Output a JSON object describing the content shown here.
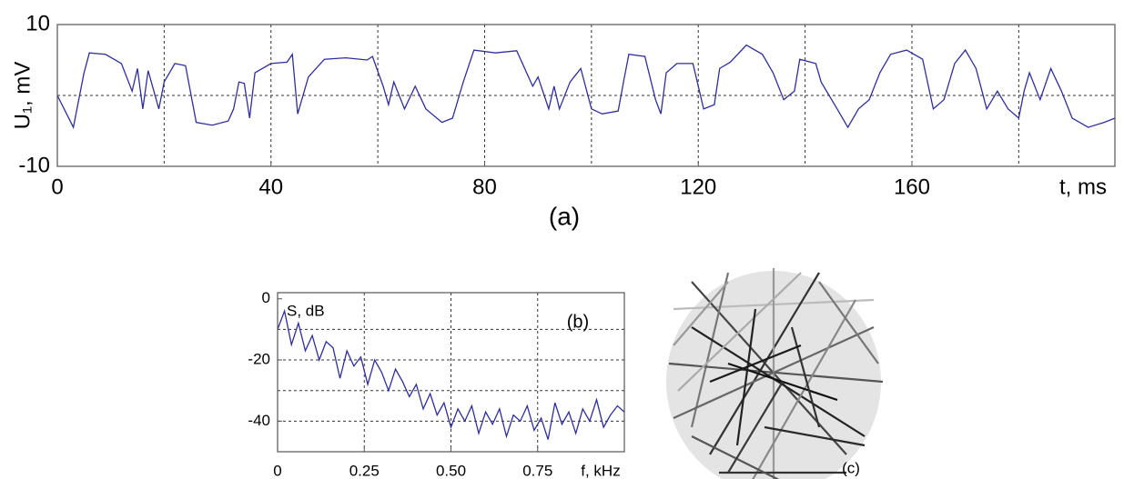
{
  "chart_data": [
    {
      "type": "line",
      "caption": "(a)",
      "xlabel": "t, ms",
      "ylabel": "U₁, mV",
      "color": "#2e2e9c",
      "xlim": [
        0,
        198
      ],
      "ylim": [
        -10,
        10
      ],
      "xticks": [
        0,
        40,
        80,
        120,
        160
      ],
      "yticks": [
        -10,
        10
      ],
      "xgrid": [
        20,
        40,
        60,
        80,
        100,
        120,
        140,
        160,
        180
      ],
      "ygrid": [
        0
      ],
      "x": [
        0,
        3,
        5,
        6,
        9,
        12,
        14,
        15,
        16,
        17,
        19,
        20,
        22,
        24,
        26,
        29,
        32,
        33,
        34,
        35,
        36,
        37,
        40,
        43,
        44,
        45,
        47,
        50,
        54,
        58,
        59,
        61,
        62,
        63,
        65,
        67,
        69,
        72,
        74,
        76,
        78,
        82,
        86,
        89,
        90,
        92,
        93,
        94,
        96,
        98,
        100,
        102,
        105,
        106,
        107,
        110,
        112,
        113,
        114,
        116,
        119,
        121,
        123,
        124,
        126,
        129,
        132,
        134,
        136,
        138,
        139,
        142,
        143,
        146,
        148,
        150,
        152,
        154,
        156,
        159,
        162,
        164,
        166,
        168,
        170,
        172,
        174,
        176,
        178,
        180,
        181,
        182,
        184,
        186,
        188,
        190,
        193,
        196,
        198
      ],
      "values": [
        0,
        -4.5,
        3.2,
        6.0,
        5.8,
        4.5,
        0.6,
        3.8,
        -1.9,
        3.5,
        -1.9,
        1.9,
        4.5,
        4.2,
        -3.8,
        -4.2,
        -3.6,
        -1.9,
        1.9,
        1.7,
        -3.2,
        3.2,
        4.5,
        4.7,
        5.8,
        -2.6,
        2.6,
        5.1,
        5.3,
        5.0,
        5.5,
        1.3,
        -1.3,
        1.9,
        -1.9,
        1.3,
        -1.9,
        -3.8,
        -3.2,
        1.9,
        6.4,
        6.0,
        6.3,
        1.3,
        2.6,
        -1.9,
        1.3,
        -1.9,
        1.9,
        3.8,
        -1.9,
        -2.6,
        -2.2,
        1.9,
        5.8,
        5.5,
        -0.6,
        -2.6,
        3.2,
        4.5,
        4.5,
        -1.9,
        -1.3,
        3.8,
        4.7,
        7.1,
        5.8,
        3.2,
        -0.6,
        0.6,
        5.1,
        4.5,
        1.9,
        -1.9,
        -4.5,
        -1.9,
        -0.6,
        3.2,
        5.8,
        6.4,
        5.1,
        -1.9,
        -0.6,
        4.5,
        6.4,
        3.8,
        -1.9,
        0.6,
        -1.9,
        -3.2,
        0.6,
        3.2,
        -0.6,
        3.8,
        0.6,
        -3.2,
        -4.5,
        -3.8,
        -3.2
      ]
    },
    {
      "type": "line",
      "caption": "(b)",
      "xlabel": "f, kHz",
      "ylabel": "S, dB",
      "color": "#2e2e9c",
      "xlim": [
        0,
        1
      ],
      "ylim": [
        -50,
        2
      ],
      "xticks": [
        0,
        0.25,
        {
          "value": 0.5,
          "label": "0.50"
        },
        0.75
      ],
      "yticks": [
        -40,
        -20,
        0
      ],
      "xgrid": [
        0.25,
        0.5,
        0.75
      ],
      "ygrid": [
        -40,
        -30,
        -20,
        -10
      ],
      "x": [
        0,
        0.02,
        0.04,
        0.06,
        0.08,
        0.1,
        0.12,
        0.14,
        0.16,
        0.18,
        0.2,
        0.22,
        0.24,
        0.26,
        0.28,
        0.3,
        0.32,
        0.34,
        0.36,
        0.38,
        0.4,
        0.42,
        0.44,
        0.46,
        0.48,
        0.5,
        0.52,
        0.54,
        0.56,
        0.58,
        0.6,
        0.62,
        0.64,
        0.66,
        0.68,
        0.7,
        0.72,
        0.74,
        0.76,
        0.78,
        0.8,
        0.82,
        0.84,
        0.86,
        0.88,
        0.9,
        0.92,
        0.94,
        0.96,
        0.98,
        1
      ],
      "values": [
        -10,
        -4,
        -15,
        -8,
        -17,
        -12,
        -20,
        -14,
        -16,
        -26,
        -17,
        -22,
        -19,
        -28,
        -20,
        -24,
        -30,
        -23,
        -27,
        -32,
        -28,
        -36,
        -31,
        -38,
        -34,
        -42,
        -36,
        -40,
        -35,
        -44,
        -37,
        -41,
        -36,
        -45,
        -38,
        -40,
        -35,
        -43,
        -39,
        -46,
        -34,
        -41,
        -37,
        -44,
        -36,
        -40,
        -33,
        -42,
        -38,
        -35,
        -37
      ]
    }
  ],
  "image_caption": "(c)"
}
